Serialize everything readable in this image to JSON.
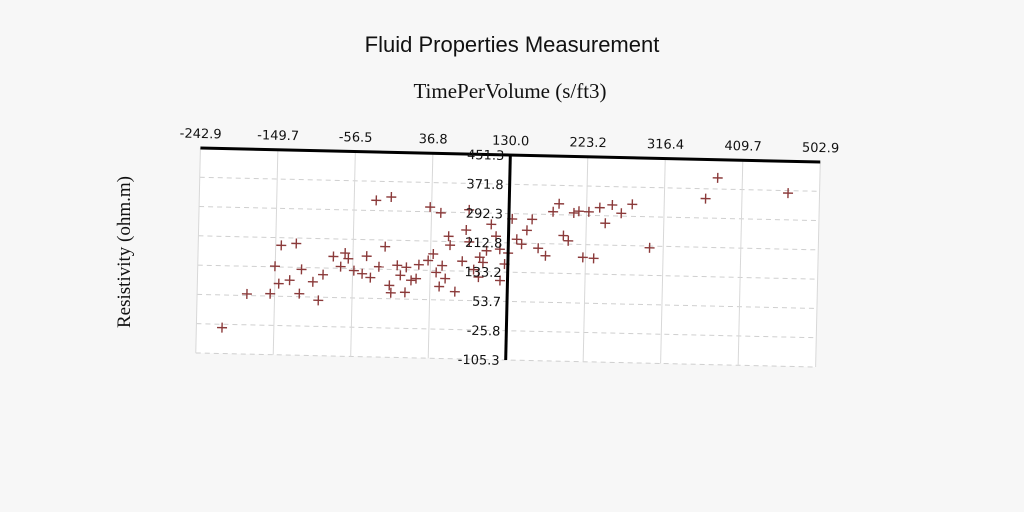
{
  "chart_data": {
    "type": "scatter",
    "title": "Fluid Properties Measurement",
    "xlabel": "TimePerVolume (s/ft3)",
    "ylabel": "Resistivity (ohm.m)",
    "xlim": [
      -242.9,
      502.9
    ],
    "ylim": [
      -105.3,
      451.3
    ],
    "x_ticks": [
      "-242.9",
      "-149.7",
      "-56.5",
      "36.8",
      "130.0",
      "223.2",
      "316.4",
      "409.7",
      "502.9"
    ],
    "y_ticks": [
      "451.3",
      "371.8",
      "292.3",
      "212.8",
      "133.2",
      "53.7",
      "-25.8",
      "-105.3"
    ],
    "grid": true,
    "marker": "plus",
    "point_color": "#8b3a3a",
    "series": [
      {
        "points": [
          [
            -212,
            -35
          ],
          [
            -183,
            58
          ],
          [
            -155,
            60
          ],
          [
            -143,
            192
          ],
          [
            -125,
            198
          ],
          [
            -150,
            135
          ],
          [
            -132,
            98
          ],
          [
            -145,
            88
          ],
          [
            -118,
            128
          ],
          [
            -104,
            95
          ],
          [
            -92,
            115
          ],
          [
            -120,
            62
          ],
          [
            -97,
            45
          ],
          [
            -66,
            175
          ],
          [
            -62,
            160
          ],
          [
            -71,
            138
          ],
          [
            -45,
            120
          ],
          [
            -40,
            168
          ],
          [
            -18,
            195
          ],
          [
            -12,
            90
          ],
          [
            -3,
            145
          ],
          [
            1,
            118
          ],
          [
            7,
            72
          ],
          [
            14,
            105
          ],
          [
            23,
            148
          ],
          [
            -10,
            70
          ],
          [
            34,
            160
          ],
          [
            40,
            178
          ],
          [
            44,
            128
          ],
          [
            51,
            147
          ],
          [
            55,
            112
          ],
          [
            60,
            203
          ],
          [
            48,
            90
          ],
          [
            67,
            77
          ],
          [
            75,
            160
          ],
          [
            79,
            245
          ],
          [
            83,
            213
          ],
          [
            58,
            227
          ],
          [
            89,
            138
          ],
          [
            95,
            118
          ],
          [
            100,
            158
          ],
          [
            104,
            190
          ],
          [
            109,
            262
          ],
          [
            115,
            230
          ],
          [
            121,
            110
          ],
          [
            126,
            155
          ],
          [
            134,
            278
          ],
          [
            140,
            223
          ],
          [
            146,
            210
          ],
          [
            152,
            248
          ],
          [
            158,
            278
          ],
          [
            166,
            200
          ],
          [
            175,
            180
          ],
          [
            183,
            300
          ],
          [
            190,
            322
          ],
          [
            196,
            236
          ],
          [
            202,
            222
          ],
          [
            208,
            298
          ],
          [
            214,
            303
          ],
          [
            220,
            178
          ],
          [
            226,
            302
          ],
          [
            233,
            176
          ],
          [
            239,
            314
          ],
          [
            246,
            272
          ],
          [
            254,
            322
          ],
          [
            265,
            300
          ],
          [
            278,
            325
          ],
          [
            300,
            208
          ],
          [
            366,
            345
          ],
          [
            380,
            402
          ],
          [
            465,
            365
          ],
          [
            -12,
            330
          ],
          [
            35,
            305
          ],
          [
            48,
            290
          ],
          [
            -30,
            320
          ],
          [
            82,
            300
          ],
          [
            -80,
            165
          ],
          [
            120,
            195
          ],
          [
            130,
            185
          ],
          [
            96,
            172
          ],
          [
            -35,
            110
          ],
          [
            20,
            110
          ],
          [
            8,
            140
          ],
          [
            -25,
            140
          ],
          [
            -55,
            128
          ]
        ]
      }
    ]
  }
}
